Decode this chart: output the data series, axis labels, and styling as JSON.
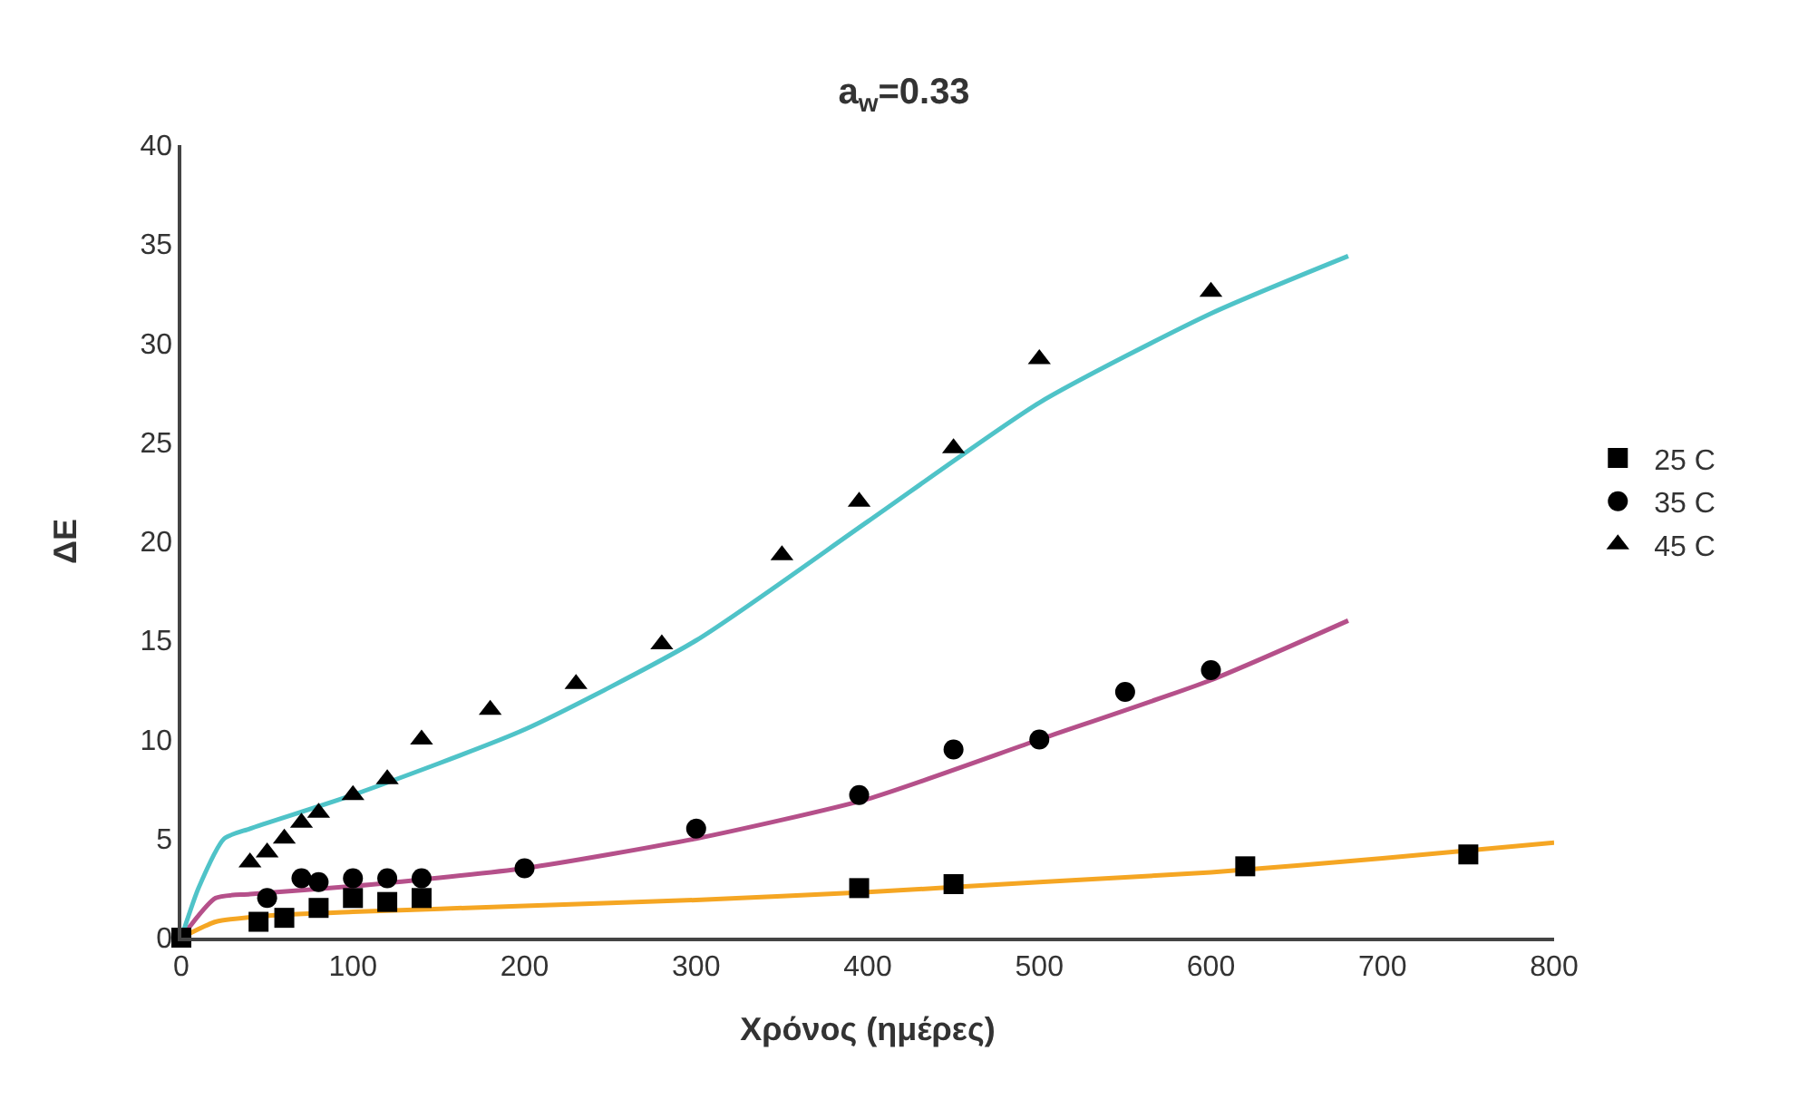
{
  "chart_data": {
    "type": "scatter",
    "title": "a$_{w}$=0.33",
    "xlabel": "Χρόνος (ημέρες)",
    "ylabel": "ΔΕ",
    "xlim": [
      0,
      800
    ],
    "xticks": [
      0,
      100,
      200,
      300,
      400,
      500,
      600,
      700,
      800
    ],
    "ylim": [
      0,
      40
    ],
    "yticks": [
      0,
      5,
      10,
      15,
      20,
      25,
      30,
      35,
      40
    ],
    "grid": false,
    "legend": "right",
    "series": [
      {
        "type": "line",
        "color": "#f5a623",
        "marker": "none",
        "x": [
          0,
          20,
          50,
          100,
          200,
          300,
          400,
          500,
          600,
          700,
          800
        ],
        "values": [
          0,
          0.8,
          1.1,
          1.3,
          1.6,
          1.9,
          2.3,
          2.8,
          3.3,
          4,
          4.8
        ]
      },
      {
        "type": "line",
        "color": "#b5508a",
        "marker": "none",
        "x": [
          0,
          20,
          40,
          100,
          200,
          300,
          400,
          500,
          600,
          680
        ],
        "values": [
          0,
          2,
          2.2,
          2.6,
          3.5,
          5,
          7,
          10,
          13,
          16
        ]
      },
      {
        "type": "line",
        "color": "#4fc3c8",
        "marker": "none",
        "x": [
          0,
          10,
          25,
          40,
          100,
          200,
          300,
          400,
          500,
          600,
          680
        ],
        "values": [
          0,
          2.5,
          5,
          5.5,
          7.2,
          10.5,
          15,
          21,
          27,
          31.5,
          34.4
        ]
      },
      {
        "name": "25 C",
        "color": "#000000",
        "marker": "square",
        "x": [
          0,
          45,
          60,
          80,
          100,
          120,
          140,
          395,
          450,
          620,
          750
        ],
        "values": [
          0,
          0.8,
          1,
          1.5,
          2,
          1.8,
          2,
          2.5,
          2.7,
          3.6,
          4.2
        ]
      },
      {
        "name": "35 C",
        "color": "#000000",
        "marker": "circle",
        "x": [
          50,
          70,
          80,
          100,
          120,
          140,
          200,
          300,
          395,
          450,
          500,
          550,
          600
        ],
        "values": [
          2,
          3,
          2.8,
          3,
          3,
          3,
          3.5,
          5.5,
          7.2,
          9.5,
          10,
          12.4,
          13.5
        ]
      },
      {
        "name": "45 C",
        "color": "#000000",
        "marker": "triangle",
        "x": [
          40,
          50,
          60,
          70,
          80,
          100,
          120,
          140,
          180,
          230,
          280,
          350,
          395,
          450,
          500,
          600
        ],
        "values": [
          3.8,
          4.3,
          5,
          5.8,
          6.3,
          7.2,
          8,
          10,
          11.5,
          12.8,
          14.8,
          19.3,
          22,
          24.7,
          29.2,
          32.6
        ]
      }
    ]
  }
}
